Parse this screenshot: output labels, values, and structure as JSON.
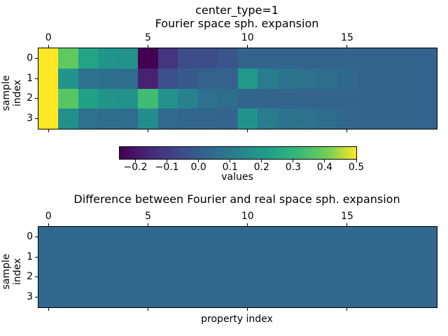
{
  "figure_title_lines": [
    "center_type=1",
    "Fourier space sph. expansion"
  ],
  "chart_data": [
    {
      "type": "heatmap",
      "title": "Fourier space sph. expansion",
      "super_title": "center_type=1",
      "ylabel": "sample index",
      "x_tick_labels": [
        "0",
        "5",
        "10",
        "15"
      ],
      "x_tick_values": [
        0,
        5,
        10,
        15
      ],
      "y_tick_labels": [
        "0",
        "1",
        "2",
        "3"
      ],
      "y_tick_values": [
        0,
        1,
        2,
        3
      ],
      "n_rows": 4,
      "n_cols": 20,
      "vmin": -0.25,
      "vmax": 0.5,
      "colormap": "viridis",
      "values": [
        [
          0.5,
          0.38,
          0.24,
          0.19,
          0.18,
          -0.25,
          -0.12,
          -0.05,
          -0.05,
          -0.025,
          0.02,
          0.02,
          0.02,
          0.02,
          0.02,
          0.02,
          0.02,
          0.02,
          0.02,
          0.02
        ],
        [
          0.5,
          0.19,
          0.06,
          0.055,
          0.05,
          -0.17,
          -0.04,
          -0.01,
          0.015,
          0.015,
          0.2,
          0.1,
          0.07,
          0.06,
          0.05,
          0.03,
          0.02,
          0.02,
          0.02,
          0.02
        ],
        [
          0.5,
          0.37,
          0.23,
          0.19,
          0.18,
          0.33,
          0.18,
          0.12,
          0.06,
          0.05,
          0.02,
          0.02,
          0.02,
          0.02,
          0.02,
          0.02,
          0.02,
          0.02,
          0.02,
          0.02
        ],
        [
          0.5,
          0.17,
          0.06,
          0.05,
          0.045,
          0.16,
          0.04,
          0.025,
          0.025,
          0.02,
          0.19,
          0.1,
          0.07,
          0.06,
          0.05,
          0.025,
          0.02,
          0.02,
          0.02,
          0.02
        ]
      ]
    },
    {
      "type": "heatmap",
      "title": "Difference between Fourier and real space sph. expansion",
      "xlabel": "property index",
      "ylabel": "sample index",
      "x_tick_labels": [
        "0",
        "5",
        "10",
        "15"
      ],
      "x_tick_values": [
        0,
        5,
        10,
        15
      ],
      "y_tick_labels": [
        "0",
        "1",
        "2",
        "3"
      ],
      "y_tick_values": [
        0,
        1,
        2,
        3
      ],
      "n_rows": 4,
      "n_cols": 20,
      "values_uniform": 0.0,
      "display_color": "#31688e",
      "values": [
        [
          0,
          0,
          0,
          0,
          0,
          0,
          0,
          0,
          0,
          0,
          0,
          0,
          0,
          0,
          0,
          0,
          0,
          0,
          0,
          0
        ],
        [
          0,
          0,
          0,
          0,
          0,
          0,
          0,
          0,
          0,
          0,
          0,
          0,
          0,
          0,
          0,
          0,
          0,
          0,
          0,
          0
        ],
        [
          0,
          0,
          0,
          0,
          0,
          0,
          0,
          0,
          0,
          0,
          0,
          0,
          0,
          0,
          0,
          0,
          0,
          0,
          0,
          0
        ],
        [
          0,
          0,
          0,
          0,
          0,
          0,
          0,
          0,
          0,
          0,
          0,
          0,
          0,
          0,
          0,
          0,
          0,
          0,
          0,
          0
        ]
      ]
    }
  ],
  "colorbar": {
    "label": "values",
    "tick_labels": [
      "−0.2",
      "−0.1",
      "0.0",
      "0.1",
      "0.2",
      "0.3",
      "0.4",
      "0.5"
    ],
    "tick_values": [
      -0.2,
      -0.1,
      0.0,
      0.1,
      0.2,
      0.3,
      0.4,
      0.5
    ],
    "vmin": -0.25,
    "vmax": 0.5,
    "colormap": "viridis",
    "viridis_anchors": [
      "#440154",
      "#482878",
      "#3e4989",
      "#31688e",
      "#26828e",
      "#1f9e89",
      "#35b779",
      "#6ece58",
      "#fde725"
    ]
  },
  "colors": {
    "background": "#ffffff",
    "text": "#000000",
    "axes_border": "#000000",
    "uniform_cell": "#31688e"
  }
}
